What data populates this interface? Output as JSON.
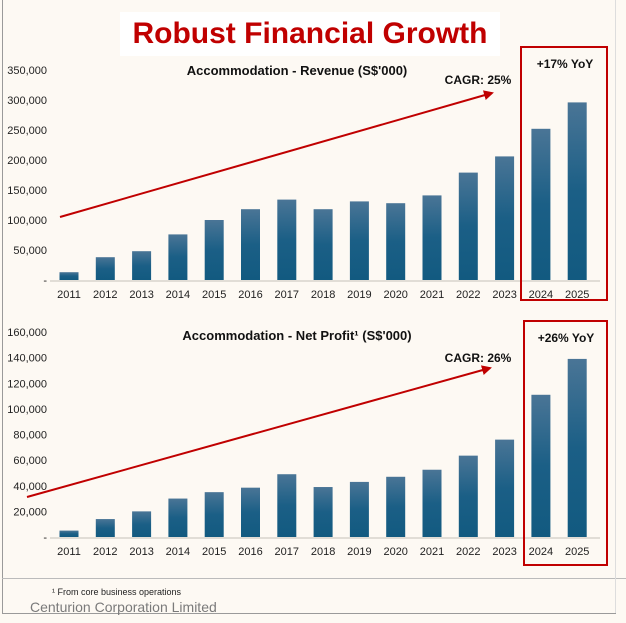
{
  "page": {
    "title": "Robust Financial Growth",
    "footnote": "¹ From core business operations",
    "company": "Centurion Corporation Limited"
  },
  "colors": {
    "bar": "#1b5f86",
    "bar_top": "#4a7596",
    "accent": "#c00000",
    "background": "#fdf9f3"
  },
  "chart_data": [
    {
      "type": "bar",
      "title": "Accommodation - Revenue (S$'000)",
      "categories": [
        "2011",
        "2012",
        "2013",
        "2014",
        "2015",
        "2016",
        "2017",
        "2018",
        "2019",
        "2020",
        "2021",
        "2022",
        "2023",
        "2024",
        "2025"
      ],
      "values": [
        13000,
        38000,
        48000,
        76000,
        100000,
        118000,
        134000,
        118000,
        131000,
        128000,
        141000,
        179000,
        206000,
        252000,
        296000
      ],
      "yticks": [
        0,
        50000,
        100000,
        150000,
        200000,
        250000,
        300000,
        350000
      ],
      "ytick_labels": [
        "-",
        "50,000",
        "100,000",
        "150,000",
        "200,000",
        "250,000",
        "300,000",
        "350,000"
      ],
      "ylim": [
        0,
        350000
      ],
      "annotations": {
        "cagr": "CAGR: 25%",
        "yoy": "+17% YoY"
      },
      "highlight": [
        "2024",
        "2025"
      ],
      "grid": false
    },
    {
      "type": "bar",
      "title": "Accommodation - Net Profit¹ (S$'000)",
      "categories": [
        "2011",
        "2012",
        "2013",
        "2014",
        "2015",
        "2016",
        "2017",
        "2018",
        "2019",
        "2020",
        "2021",
        "2022",
        "2023",
        "2024",
        "2025"
      ],
      "values": [
        5000,
        14000,
        20000,
        30000,
        35000,
        38500,
        49000,
        39000,
        43000,
        47000,
        52500,
        63500,
        76000,
        111000,
        139000
      ],
      "yticks": [
        0,
        20000,
        40000,
        60000,
        80000,
        100000,
        120000,
        140000,
        160000
      ],
      "ytick_labels": [
        "-",
        "20,000",
        "40,000",
        "60,000",
        "80,000",
        "100,000",
        "120,000",
        "140,000",
        "160,000"
      ],
      "ylim": [
        0,
        160000
      ],
      "annotations": {
        "cagr": "CAGR: 26%",
        "yoy": "+26% YoY"
      },
      "highlight": [
        "2024",
        "2025"
      ],
      "grid": false
    }
  ]
}
